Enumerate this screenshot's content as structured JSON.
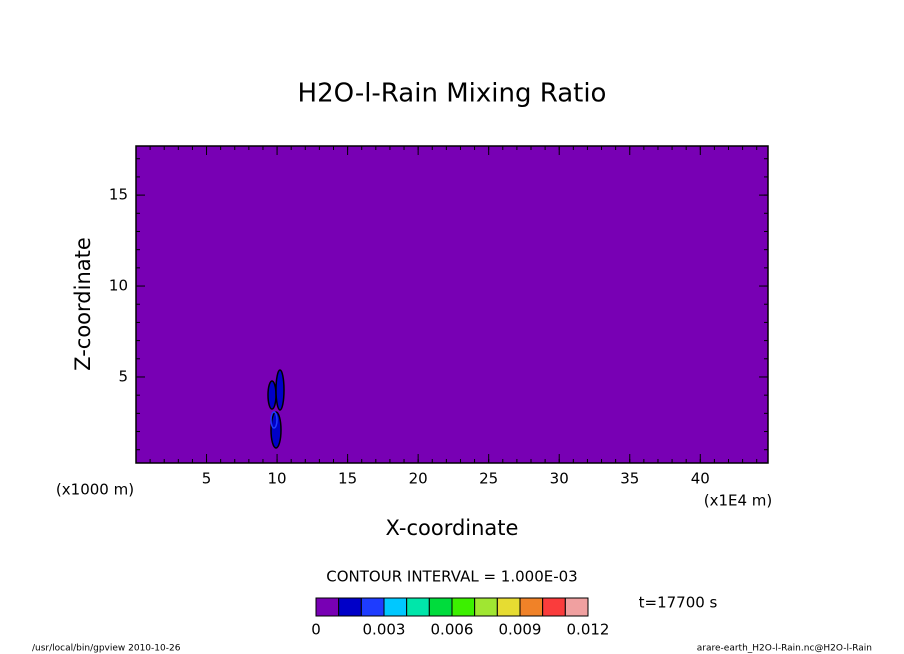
{
  "chart_data": {
    "type": "contour",
    "title": "H2O-l-Rain Mixing Ratio",
    "x_label": "X-coordinate",
    "y_label": "Z-coordinate",
    "x_unit": "(x1E4 m)",
    "y_unit": "(x1000 m)",
    "xlim": [
      0,
      44.8
    ],
    "xticks": [
      5,
      10,
      15,
      20,
      25,
      30,
      35,
      40
    ],
    "ylim": [
      0.27,
      17.7
    ],
    "yticks": [
      5,
      10,
      15
    ],
    "contour_interval": "CONTOUR INTERVAL = 1.000E-03",
    "time": "t=17700 s",
    "colorbar": {
      "levels": [
        0,
        0.001,
        0.002,
        0.003,
        0.004,
        0.005,
        0.006,
        0.007,
        0.008,
        0.009,
        0.01,
        0.011,
        0.012
      ],
      "colors": [
        "#7800b4",
        "#0000c8",
        "#1e3cff",
        "#00c8ff",
        "#00e6aa",
        "#00dc3c",
        "#3cf000",
        "#a0e632",
        "#e6dc32",
        "#f08228",
        "#fa3c3c",
        "#f0a0a0"
      ],
      "ticks": [
        0,
        0.003,
        0.006,
        0.009,
        0.012
      ]
    },
    "footer_left": "/usr/local/bin/gpview  2010-10-26",
    "footer_right": "arare-earth_H2O-l-Rain.nc@H2O-l-Rain"
  }
}
